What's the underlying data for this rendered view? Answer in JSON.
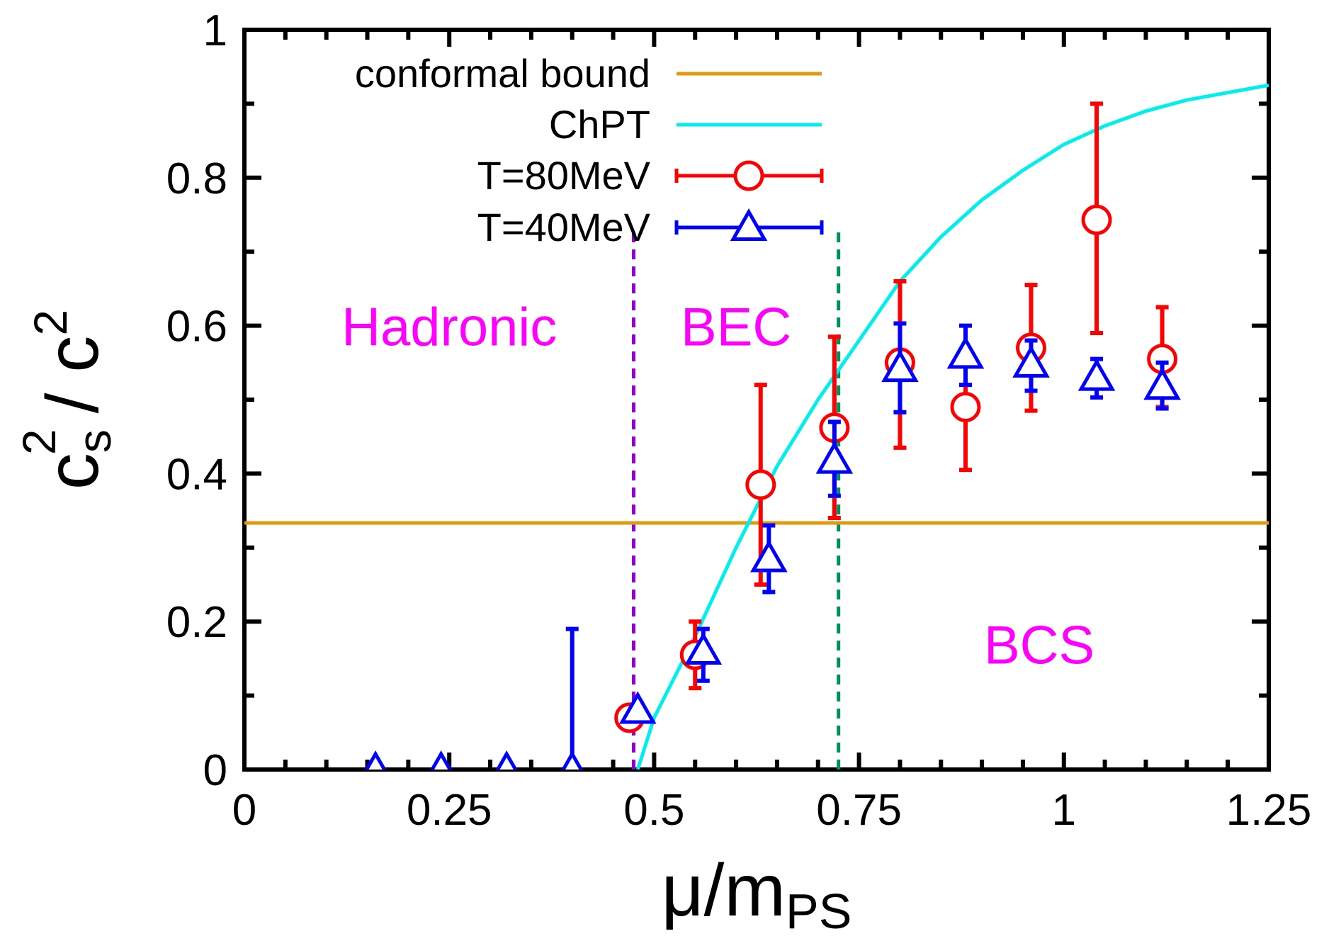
{
  "chart_data": {
    "type": "scatter",
    "title": "",
    "xlabel": "μ/m_PS",
    "xlabel_main": "μ/m",
    "xlabel_sub": "PS",
    "ylabel": "c_s^2 / c^2",
    "ylabel_base": "c",
    "ylabel_sub": "s",
    "ylabel_sup": "2",
    "ylabel_div": "/ c",
    "ylabel_sup2": "2",
    "xlim": [
      0,
      1.25
    ],
    "ylim": [
      0,
      1
    ],
    "xticks": [
      0,
      0.25,
      0.5,
      0.75,
      1,
      1.25
    ],
    "xtick_labels": [
      "0",
      "0.25",
      "0.5",
      "0.75",
      "1",
      "1.25"
    ],
    "yticks": [
      0,
      0.2,
      0.4,
      0.6,
      0.8,
      1
    ],
    "ytick_labels": [
      "0",
      "0.2",
      "0.4",
      "0.6",
      "0.8",
      "1"
    ],
    "legend_position": "top-left",
    "conformal_bound": {
      "label": "conformal bound",
      "y": 0.3333,
      "color": "#e09a10"
    },
    "chpt": {
      "label": "ChPT",
      "color": "#00eeee",
      "x": [
        0.48,
        0.5,
        0.55,
        0.6,
        0.65,
        0.7,
        0.75,
        0.8,
        0.85,
        0.9,
        0.95,
        1.0,
        1.05,
        1.1,
        1.15,
        1.2,
        1.25
      ],
      "y": [
        0.0,
        0.07,
        0.18,
        0.3,
        0.41,
        0.5,
        0.58,
        0.66,
        0.72,
        0.77,
        0.81,
        0.845,
        0.87,
        0.89,
        0.905,
        0.915,
        0.925
      ]
    },
    "series": [
      {
        "name": "T=80MeV",
        "color": "#ff0000",
        "marker": "circle",
        "points": [
          {
            "x": 0.47,
            "y": 0.07,
            "ylo": 0.07,
            "yhi": 0.07
          },
          {
            "x": 0.55,
            "y": 0.155,
            "ylo": 0.11,
            "yhi": 0.2
          },
          {
            "x": 0.63,
            "y": 0.385,
            "ylo": 0.25,
            "yhi": 0.52
          },
          {
            "x": 0.72,
            "y": 0.462,
            "ylo": 0.34,
            "yhi": 0.585
          },
          {
            "x": 0.8,
            "y": 0.55,
            "ylo": 0.435,
            "yhi": 0.66
          },
          {
            "x": 0.88,
            "y": 0.49,
            "ylo": 0.405,
            "yhi": 0.56
          },
          {
            "x": 0.96,
            "y": 0.57,
            "ylo": 0.485,
            "yhi": 0.655
          },
          {
            "x": 1.04,
            "y": 0.743,
            "ylo": 0.59,
            "yhi": 0.9
          },
          {
            "x": 1.12,
            "y": 0.555,
            "ylo": 0.49,
            "yhi": 0.625
          }
        ]
      },
      {
        "name": "T=40MeV",
        "color": "#0000ff",
        "marker": "triangle",
        "points": [
          {
            "x": 0.16,
            "y": 0.0,
            "ylo": 0.0,
            "yhi": 0.0
          },
          {
            "x": 0.24,
            "y": 0.0,
            "ylo": 0.0,
            "yhi": 0.0
          },
          {
            "x": 0.32,
            "y": 0.0,
            "ylo": 0.0,
            "yhi": 0.0
          },
          {
            "x": 0.4,
            "y": 0.0,
            "ylo": 0.0,
            "yhi": 0.19
          },
          {
            "x": 0.48,
            "y": 0.08,
            "ylo": 0.08,
            "yhi": 0.08
          },
          {
            "x": 0.56,
            "y": 0.16,
            "ylo": 0.12,
            "yhi": 0.19
          },
          {
            "x": 0.64,
            "y": 0.285,
            "ylo": 0.24,
            "yhi": 0.33
          },
          {
            "x": 0.72,
            "y": 0.418,
            "ylo": 0.37,
            "yhi": 0.47
          },
          {
            "x": 0.8,
            "y": 0.542,
            "ylo": 0.483,
            "yhi": 0.603
          },
          {
            "x": 0.88,
            "y": 0.56,
            "ylo": 0.52,
            "yhi": 0.6
          },
          {
            "x": 0.96,
            "y": 0.548,
            "ylo": 0.512,
            "yhi": 0.58
          },
          {
            "x": 1.04,
            "y": 0.53,
            "ylo": 0.503,
            "yhi": 0.555
          },
          {
            "x": 1.12,
            "y": 0.518,
            "ylo": 0.488,
            "yhi": 0.55
          }
        ]
      }
    ],
    "vlines": [
      {
        "x": 0.475,
        "color": "#9400d3",
        "style": "dashed"
      },
      {
        "x": 0.725,
        "color": "#009060",
        "style": "dashed"
      }
    ],
    "regions": [
      {
        "label": "Hadronic",
        "x": 0.25,
        "y": 0.6,
        "color": "#ff00ff"
      },
      {
        "label": "BEC",
        "x": 0.6,
        "y": 0.6,
        "color": "#ff00ff"
      },
      {
        "label": "BCS",
        "x": 0.97,
        "y": 0.17,
        "color": "#ff00ff"
      }
    ]
  }
}
